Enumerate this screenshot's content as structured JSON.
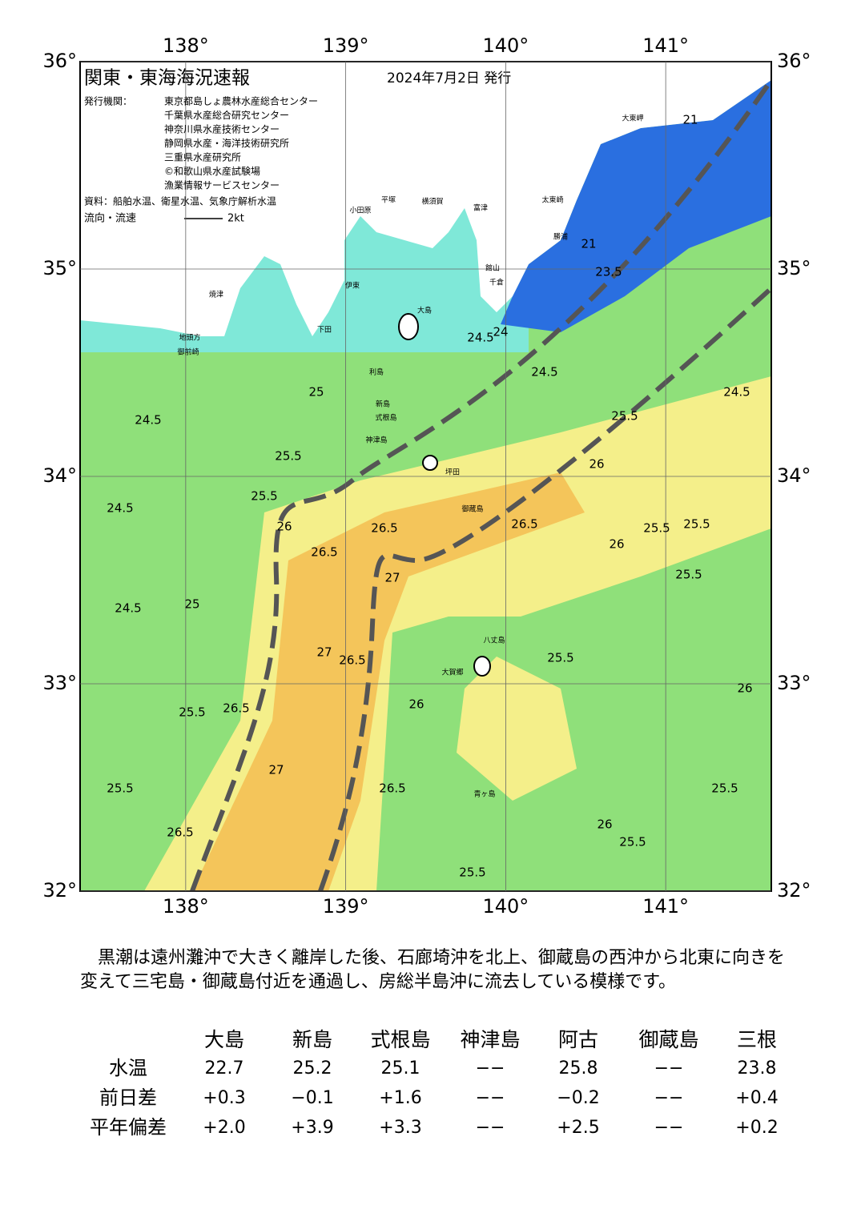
{
  "header": {
    "title": "関東・東海海況速報",
    "date": "2024年7月2日 発行",
    "issuer_label": "発行機関：",
    "issuers": [
      "東京都島しょ農林水産総合センター",
      "千葉県水産総合研究センター",
      "神奈川県水産技術センター",
      "静岡県水産・海洋技術研究所",
      "三重県水産研究所",
      "©和歌山県水産試験場",
      "漁業情報サービスセンター"
    ],
    "source": "資料：船舶水温、衛星水温、気象庁解析水温",
    "flow_label": "流向・流速",
    "flow_scale": "2kt"
  },
  "map": {
    "xlim": [
      137.34,
      141.66
    ],
    "ylim": [
      32,
      36
    ],
    "xticks": [
      {
        "value": 138,
        "label": "138°"
      },
      {
        "value": 139,
        "label": "139°"
      },
      {
        "value": 140,
        "label": "140°"
      },
      {
        "value": 141,
        "label": "141°"
      }
    ],
    "yticks": [
      {
        "value": 32,
        "label": "32°"
      },
      {
        "value": 33,
        "label": "33°"
      },
      {
        "value": 34,
        "label": "34°"
      },
      {
        "value": 35,
        "label": "35°"
      },
      {
        "value": 36,
        "label": "36°"
      }
    ],
    "isotherm_labels": [
      21,
      21,
      23.5,
      24,
      24.5,
      24.5,
      25,
      24.5,
      25.5,
      24.5,
      25.5,
      26,
      26.5,
      26.5,
      27,
      26.5,
      25.5,
      25.5,
      26,
      25.5,
      24.5,
      25,
      27,
      26.5,
      25.5,
      26,
      25.5,
      26.5,
      27,
      26.5,
      25.5,
      26.5,
      25.5,
      26,
      25.5,
      25.5,
      26,
      24.5,
      25.5,
      26
    ],
    "place_names": [
      "大東岬",
      "太東崎",
      "勝浦",
      "千倉",
      "館山",
      "富津",
      "横須賀",
      "平塚",
      "小田原",
      "伊東",
      "下田",
      "大島",
      "利島",
      "新島",
      "式根島",
      "神津島",
      "坪田",
      "御蔵島",
      "八丈島",
      "大賀郷",
      "青ヶ島",
      "御前崎",
      "地頭方",
      "焼津"
    ]
  },
  "description": "黒潮は遠州灘沖で大きく離岸した後、石廊埼沖を北上、御蔵島の西沖から北東に向きを変えて三宅島・御蔵島付近を通過し、房総半島沖に流去している模様です。",
  "table": {
    "columns": [
      "大島",
      "新島",
      "式根島",
      "神津島",
      "阿古",
      "御蔵島",
      "三根"
    ],
    "rows": [
      {
        "label": "水温",
        "cells": [
          "22.7",
          "25.2",
          "25.1",
          "−−",
          "25.8",
          "−−",
          "23.8"
        ]
      },
      {
        "label": "前日差",
        "cells": [
          "+0.3",
          "−0.1",
          "+1.6",
          "−−",
          "−0.2",
          "−−",
          "+0.4"
        ]
      },
      {
        "label": "平年偏差",
        "cells": [
          "+2.0",
          "+3.9",
          "+3.3",
          "−−",
          "+2.5",
          "−−",
          "+0.2"
        ]
      }
    ]
  }
}
